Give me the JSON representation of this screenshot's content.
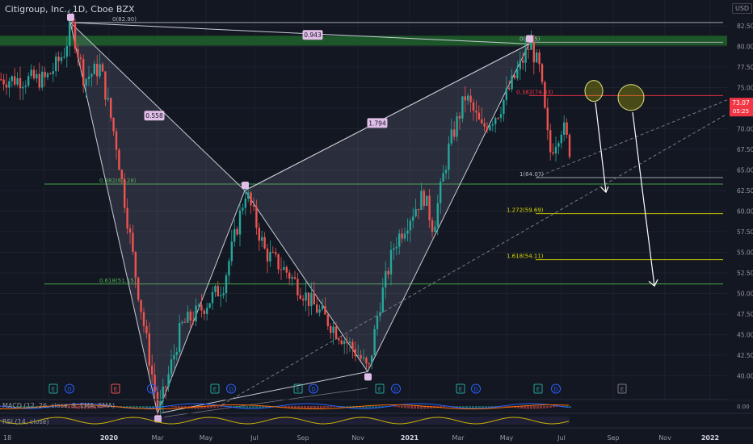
{
  "header": {
    "title": "Citigroup, Inc., 1D, Cboe BZX",
    "currency_button": "USD"
  },
  "indicators": {
    "macd_label": "MACD (12, 26, close, 9, EMA, EMA)",
    "rsi_label": "RSI (14, close)"
  },
  "chart_data": {
    "type": "candlestick",
    "symbol": "C",
    "timeframe": "1D",
    "price_axis": {
      "ticks": [
        40,
        42.5,
        45,
        47.5,
        50,
        52.5,
        55,
        57.5,
        60,
        62.5,
        65,
        67.5,
        70,
        72.5,
        75,
        77.5,
        80,
        82.5
      ]
    },
    "time_axis": {
      "ticks": [
        "18",
        "2020",
        "Mar",
        "May",
        "Jul",
        "Sep",
        "Nov",
        "2021",
        "Mar",
        "May",
        "Jul",
        "Sep",
        "Nov",
        "2022"
      ]
    },
    "last_price": {
      "value": "73.07",
      "countdown": "05:25"
    },
    "price_path": [
      {
        "t": 0,
        "p": 76
      },
      {
        "t": 0.03,
        "p": 77.5
      },
      {
        "t": 0.06,
        "p": 79.5
      },
      {
        "t": 0.08,
        "p": 82.9
      },
      {
        "t": 0.12,
        "p": 76
      },
      {
        "t": 0.17,
        "p": 77.5
      },
      {
        "t": 0.22,
        "p": 68
      },
      {
        "t": 0.28,
        "p": 52
      },
      {
        "t": 0.35,
        "p": 35.4
      },
      {
        "t": 0.42,
        "p": 46
      },
      {
        "t": 0.48,
        "p": 48
      },
      {
        "t": 0.55,
        "p": 51
      },
      {
        "t": 0.62,
        "p": 62.5
      },
      {
        "t": 0.68,
        "p": 55
      },
      {
        "t": 0.75,
        "p": 52.5
      },
      {
        "t": 0.82,
        "p": 49
      },
      {
        "t": 0.9,
        "p": 45.5
      },
      {
        "t": 0.97,
        "p": 42.5
      },
      {
        "t": 1.0,
        "p": 40.5
      },
      {
        "t": 1.03,
        "p": 48
      },
      {
        "t": 1.08,
        "p": 56
      },
      {
        "t": 1.13,
        "p": 59.5
      },
      {
        "t": 1.17,
        "p": 62
      },
      {
        "t": 1.2,
        "p": 58
      },
      {
        "t": 1.25,
        "p": 68
      },
      {
        "t": 1.3,
        "p": 74
      },
      {
        "t": 1.35,
        "p": 70
      },
      {
        "t": 1.4,
        "p": 72
      },
      {
        "t": 1.45,
        "p": 76
      },
      {
        "t": 1.5,
        "p": 80.3
      },
      {
        "t": 1.53,
        "p": 77
      },
      {
        "t": 1.56,
        "p": 67
      },
      {
        "t": 1.6,
        "p": 70.5
      },
      {
        "t": 1.64,
        "p": 65
      },
      {
        "t": 1.67,
        "p": 67.5
      },
      {
        "t": 1.7,
        "p": 68
      },
      {
        "t": 1.73,
        "p": 74
      }
    ],
    "pattern": {
      "points": [
        {
          "id": "X",
          "t": 0.08,
          "p": 82.9
        },
        {
          "id": "A",
          "t": 0.35,
          "p": 35.4
        },
        {
          "id": "B",
          "t": 0.62,
          "p": 62.5
        },
        {
          "id": "C",
          "t": 1.0,
          "p": 40.5
        },
        {
          "id": "D",
          "t": 1.5,
          "p": 80.3
        }
      ],
      "ratios": [
        {
          "text": "0.558",
          "t": 0.34,
          "p": 71.5
        },
        {
          "text": "0.943",
          "t": 0.83,
          "p": 81.3
        },
        {
          "text": "1.794",
          "t": 1.03,
          "p": 70.6
        }
      ]
    },
    "levels": [
      {
        "label": "0(82.90)",
        "p": 82.9,
        "color": "#b2b5be",
        "x0": 0.08,
        "x1": 2.1,
        "label_t": 0.21
      },
      {
        "label": "0(80.5)",
        "p": 80.5,
        "color": "#b2b5be",
        "x0": 1.5,
        "x1": 2.1,
        "label_t": 1.47
      },
      {
        "label": "0.382(74.03)",
        "p": 74.03,
        "color": "#f23645",
        "x0": 1.5,
        "x1": 2.1,
        "label_t": 1.46
      },
      {
        "label": "1(64.07)",
        "p": 64.07,
        "color": "#b2b5be",
        "x0": 1.52,
        "x1": 2.1,
        "label_t": 1.47
      },
      {
        "label": "1.272(59.69)",
        "p": 59.69,
        "color": "#d4d400",
        "x0": 1.52,
        "x1": 2.1,
        "label_t": 1.43
      },
      {
        "label": "1.618(54.11)",
        "p": 54.11,
        "color": "#d4d400",
        "x0": 1.52,
        "x1": 2.1,
        "label_t": 1.43
      },
      {
        "label": "0.382(63.28)",
        "p": 63.28,
        "color": "#4caf50",
        "x0": 0,
        "x1": 2.1,
        "label_t": 0.17
      },
      {
        "label": "0.618(51.15)",
        "p": 51.15,
        "color": "#4caf50",
        "x0": 0,
        "x1": 2.1,
        "label_t": 0.17
      }
    ]
  }
}
